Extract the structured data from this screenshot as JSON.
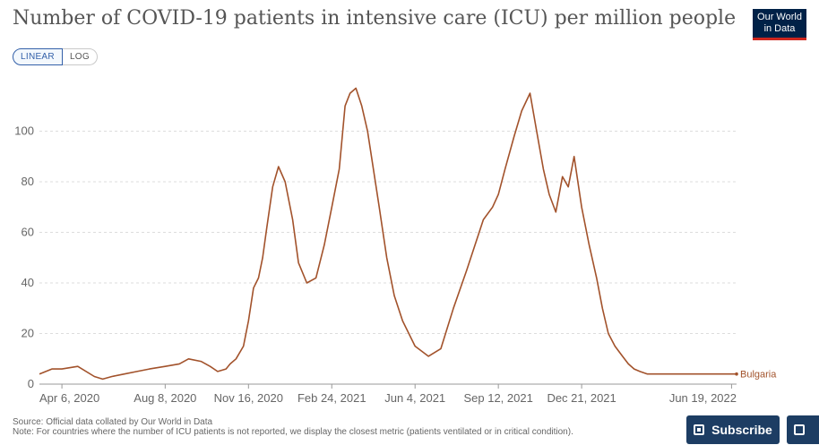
{
  "title": "Number of COVID-19 patients in intensive care (ICU) per million people",
  "logo": {
    "line1": "Our World",
    "line2": "in Data"
  },
  "scale_toggle": {
    "linear": "LINEAR",
    "log": "LOG",
    "selected": "LINEAR"
  },
  "source_text": "Source: Official data collated by Our World in Data",
  "note_text": "Note: For countries where the number of ICU patients is not reported, we display the closest metric (patients ventilated or in critical condition).",
  "subscribe_label": "Subscribe",
  "colors": {
    "line": "#a2522b",
    "grid": "#dddddd",
    "axis_text": "#666666"
  },
  "chart_data": {
    "type": "line",
    "title": "Number of COVID-19 patients in intensive care (ICU) per million people",
    "xlabel": "",
    "ylabel": "",
    "ylim": [
      0,
      120
    ],
    "yticks": [
      0,
      20,
      40,
      60,
      80,
      100
    ],
    "xtick_labels": [
      "Apr 6, 2020",
      "Aug 8, 2020",
      "Nov 16, 2020",
      "Feb 24, 2021",
      "Jun 4, 2021",
      "Sep 12, 2021",
      "Dec 21, 2021",
      "Jun 19, 2022"
    ],
    "grid": true,
    "series": [
      {
        "name": "Bulgaria",
        "x": [
          "2020-03-10",
          "2020-03-25",
          "2020-04-06",
          "2020-04-25",
          "2020-05-15",
          "2020-05-25",
          "2020-06-05",
          "2020-06-20",
          "2020-07-05",
          "2020-07-20",
          "2020-08-08",
          "2020-08-25",
          "2020-09-05",
          "2020-09-20",
          "2020-10-01",
          "2020-10-10",
          "2020-10-20",
          "2020-10-25",
          "2020-11-01",
          "2020-11-10",
          "2020-11-16",
          "2020-11-22",
          "2020-11-28",
          "2020-12-03",
          "2020-12-08",
          "2020-12-15",
          "2020-12-22",
          "2020-12-30",
          "2021-01-08",
          "2021-01-15",
          "2021-01-25",
          "2021-02-05",
          "2021-02-15",
          "2021-02-24",
          "2021-03-05",
          "2021-03-12",
          "2021-03-18",
          "2021-03-25",
          "2021-04-01",
          "2021-04-08",
          "2021-04-15",
          "2021-04-22",
          "2021-05-01",
          "2021-05-10",
          "2021-05-20",
          "2021-06-04",
          "2021-06-20",
          "2021-07-05",
          "2021-07-20",
          "2021-08-05",
          "2021-08-15",
          "2021-08-25",
          "2021-09-05",
          "2021-09-12",
          "2021-09-20",
          "2021-10-01",
          "2021-10-10",
          "2021-10-20",
          "2021-10-28",
          "2021-11-05",
          "2021-11-12",
          "2021-11-20",
          "2021-11-28",
          "2021-12-05",
          "2021-12-12",
          "2021-12-21",
          "2021-12-30",
          "2022-01-08",
          "2022-01-15",
          "2022-01-22",
          "2022-01-30",
          "2022-02-08",
          "2022-02-15",
          "2022-02-22",
          "2022-03-01",
          "2022-03-10",
          "2022-03-20",
          "2022-04-01",
          "2022-04-15",
          "2022-05-01",
          "2022-05-15",
          "2022-06-01",
          "2022-06-19",
          "2022-06-25"
        ],
        "y": [
          4,
          6,
          6,
          7,
          3,
          2,
          3,
          4,
          5,
          6,
          7,
          8,
          10,
          9,
          7,
          5,
          6,
          8,
          10,
          15,
          25,
          38,
          42,
          50,
          62,
          78,
          86,
          80,
          65,
          48,
          40,
          42,
          55,
          70,
          85,
          110,
          115,
          117,
          110,
          100,
          85,
          70,
          50,
          35,
          25,
          15,
          11,
          14,
          30,
          45,
          55,
          65,
          70,
          75,
          85,
          98,
          108,
          115,
          100,
          85,
          75,
          68,
          82,
          78,
          90,
          70,
          55,
          42,
          30,
          20,
          15,
          11,
          8,
          6,
          5,
          4,
          4,
          4,
          4,
          4,
          4,
          4,
          4,
          4
        ]
      }
    ]
  }
}
